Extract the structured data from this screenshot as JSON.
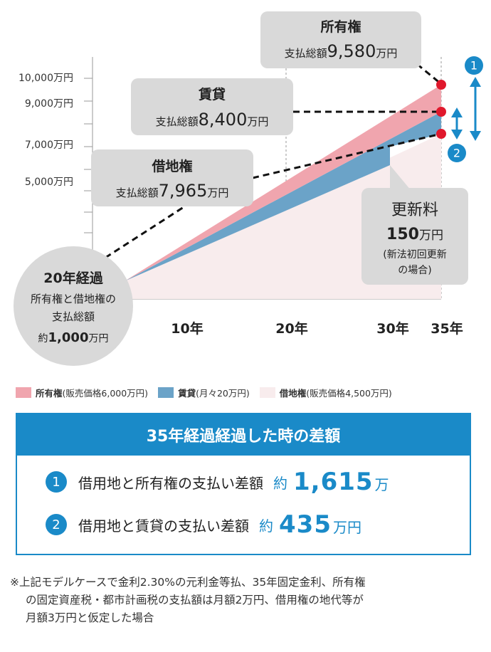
{
  "chart_data": {
    "type": "area",
    "x": [
      0,
      20,
      35
    ],
    "x_ticks": [
      "10年",
      "20年",
      "30年",
      "35年"
    ],
    "y_ticks": [
      "10,000万円",
      "9,000万円",
      "7,000万円",
      "5,000万円"
    ],
    "series": [
      {
        "name": "所有権",
        "values": [
          1000,
          1000,
          9580
        ],
        "color": "#f0a5ae"
      },
      {
        "name": "賃貸",
        "values": [
          1000,
          1000,
          8400
        ],
        "color": "#6ba3c8"
      },
      {
        "name": "借地権",
        "values": [
          1000,
          1000,
          7965
        ],
        "color": "#f8eced"
      }
    ],
    "callouts": {
      "owner": {
        "title": "所有権",
        "prefix": "支払総額",
        "amount": "9,580",
        "unit": "万円"
      },
      "rental": {
        "title": "賃貸",
        "prefix": "支払総額",
        "amount": "8,400",
        "unit": "万円"
      },
      "leasehold": {
        "title": "借地権",
        "prefix": "支払総額",
        "amount": "7,965",
        "unit": "万円"
      },
      "renewal": {
        "title": "更新料",
        "amount": "150",
        "unit": "万円",
        "note1": "(新法初回更新",
        "note2": "の場合)"
      },
      "twenty": {
        "title": "20年経過",
        "line1": "所有権と借地権の",
        "line2": "支払総額",
        "prefix": "約",
        "amount": "1,000",
        "unit": "万円"
      }
    },
    "markers": [
      "1",
      "2"
    ]
  },
  "legend": [
    {
      "name": "所有権",
      "detail": "(販売価格6,000万円)",
      "color": "#f0a5ae"
    },
    {
      "name": "賃貸",
      "detail": "(月々20万円)",
      "color": "#6ba3c8"
    },
    {
      "name": "借地権",
      "detail": "(販売価格4,500万円)",
      "color": "#f8eced"
    }
  ],
  "diff": {
    "title": "35年経過経過した時の差額",
    "rows": [
      {
        "num": "1",
        "label": "借用地と所有権の支払い差額",
        "approx": "約",
        "amount": "1,615",
        "unit": "万"
      },
      {
        "num": "2",
        "label": "借用地と賃貸の支払い差額",
        "approx": "約",
        "amount": "435",
        "unit": "万円"
      }
    ]
  },
  "note": {
    "line1": "※上記モデルケースで金利2.30%の元利金等払、35年固定金利、所有権",
    "line2": "の固定資産税・都市計画税の支払額は月額2万円、借用権の地代等が",
    "line3": "月額3万円と仮定した場合"
  },
  "colors": {
    "accent": "#1a8ac8",
    "marker": "#e0182c",
    "callout": "#d9d9d9"
  }
}
